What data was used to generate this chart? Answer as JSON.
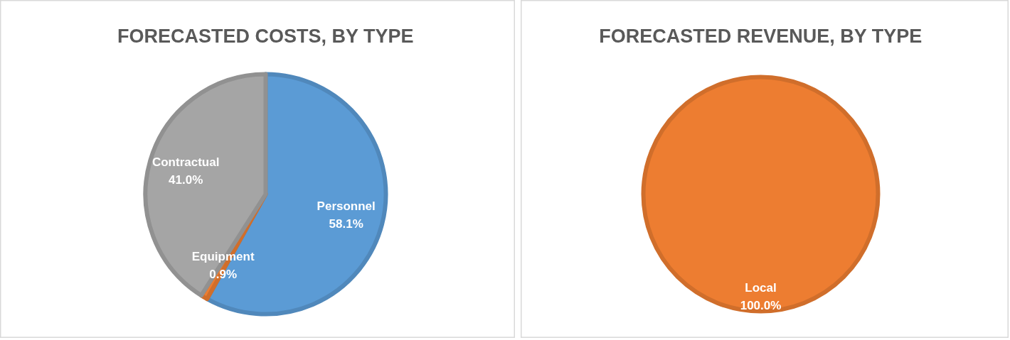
{
  "chart_data": [
    {
      "type": "pie",
      "title": "FORECASTED COSTS, BY TYPE",
      "categories": [
        "Personnel",
        "Equipment",
        "Contractual"
      ],
      "values": [
        58.1,
        0.9,
        41.0
      ],
      "colors": [
        "#5b9bd5",
        "#ed7d31",
        "#a5a5a5"
      ],
      "value_labels": [
        "58.1%",
        "0.9%",
        "41.0%"
      ]
    },
    {
      "type": "pie",
      "title": "FORECASTED REVENUE, BY TYPE",
      "categories": [
        "Local"
      ],
      "values": [
        100.0
      ],
      "colors": [
        "#ed7d31"
      ],
      "value_labels": [
        "100.0%"
      ]
    }
  ]
}
